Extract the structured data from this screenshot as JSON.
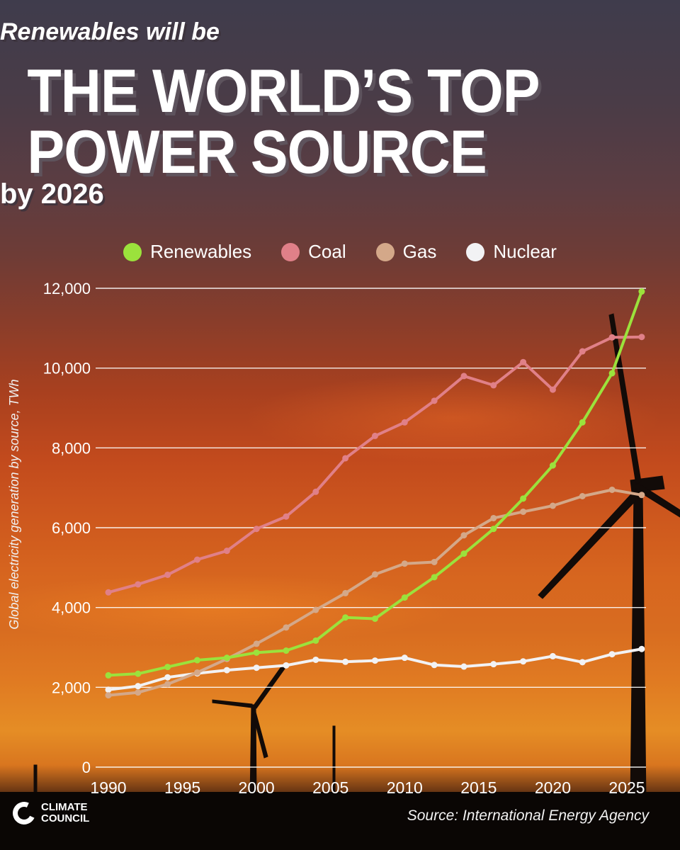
{
  "header": {
    "subtitle": "Renewables will be",
    "headline_line1": "THE WORLD’S TOP",
    "headline_line2": "POWER SOURCE",
    "byline": "by 2026"
  },
  "footer": {
    "logo_line1": "CLIMATE",
    "logo_line2": "COUNCIL",
    "source": "Source: International Energy Agency"
  },
  "colors": {
    "renewables": "#9be23c",
    "coal": "#e08088",
    "gas": "#d4a889",
    "nuclear": "#f2f2f4",
    "grid": "#ffffff"
  },
  "chart_data": {
    "type": "line",
    "ylabel": "Global electricity generation by source, TWh",
    "xlabel": "",
    "ylim": [
      0,
      12000
    ],
    "xlim": [
      1990,
      2025
    ],
    "x_ticks": [
      1990,
      1995,
      2000,
      2005,
      2010,
      2015,
      2020,
      2025
    ],
    "x_tick_labels": [
      "1990",
      "1995",
      "2000",
      "2005",
      "2010",
      "2015",
      "2020",
      "2025"
    ],
    "y_ticks": [
      0,
      2000,
      4000,
      6000,
      8000,
      10000,
      12000
    ],
    "y_tick_labels": [
      "0",
      "2,000",
      "4,000",
      "6,000",
      "8,000",
      "10,000",
      "12,000"
    ],
    "grid": "horizontal",
    "legend_position": "top",
    "series": [
      {
        "name": "Renewables",
        "color_key": "renewables",
        "x": [
          1990,
          1992,
          1994,
          1996,
          1998,
          2000,
          2002,
          2004,
          2006,
          2008,
          2010,
          2012,
          2014,
          2016,
          2018,
          2020,
          2022,
          2024,
          2026
        ],
        "y": [
          2300,
          2340,
          2510,
          2680,
          2740,
          2870,
          2920,
          3170,
          3750,
          3720,
          4250,
          4760,
          5350,
          5970,
          6730,
          7560,
          8640,
          9870,
          11920
        ]
      },
      {
        "name": "Coal",
        "color_key": "coal",
        "x": [
          1990,
          1992,
          1994,
          1996,
          1998,
          2000,
          2002,
          2004,
          2006,
          2008,
          2010,
          2012,
          2014,
          2016,
          2018,
          2020,
          2022,
          2024,
          2026
        ],
        "y": [
          4380,
          4580,
          4820,
          5200,
          5420,
          5970,
          6280,
          6900,
          7740,
          8300,
          8640,
          9180,
          9800,
          9570,
          10150,
          9460,
          10420,
          10770,
          10780
        ]
      },
      {
        "name": "Gas",
        "color_key": "gas",
        "x": [
          1990,
          1992,
          1994,
          1996,
          1998,
          2000,
          2002,
          2004,
          2006,
          2008,
          2010,
          2012,
          2014,
          2016,
          2018,
          2020,
          2022,
          2024,
          2026
        ],
        "y": [
          1800,
          1870,
          2080,
          2370,
          2710,
          3090,
          3500,
          3940,
          4360,
          4830,
          5100,
          5140,
          5810,
          6240,
          6400,
          6550,
          6790,
          6950,
          6820
        ]
      },
      {
        "name": "Nuclear",
        "color_key": "nuclear",
        "x": [
          1990,
          1992,
          1994,
          1996,
          1998,
          2000,
          2002,
          2004,
          2006,
          2008,
          2010,
          2012,
          2014,
          2016,
          2018,
          2020,
          2022,
          2024,
          2026
        ],
        "y": [
          1940,
          2030,
          2250,
          2350,
          2430,
          2490,
          2550,
          2690,
          2640,
          2670,
          2740,
          2560,
          2520,
          2580,
          2650,
          2780,
          2630,
          2830,
          2960
        ]
      }
    ]
  }
}
